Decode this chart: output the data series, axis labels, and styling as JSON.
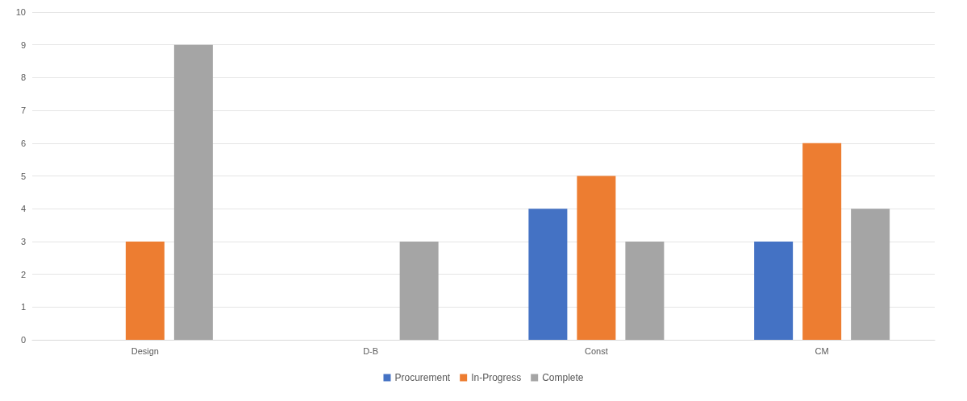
{
  "chart_data": {
    "type": "bar",
    "categories": [
      "Design",
      "D-B",
      "Const",
      "CM"
    ],
    "series": [
      {
        "name": "Procurement",
        "color": "#4472c4",
        "values": [
          0,
          0,
          4,
          3
        ]
      },
      {
        "name": "In-Progress",
        "color": "#ed7d31",
        "values": [
          3,
          0,
          5,
          6
        ]
      },
      {
        "name": "Complete",
        "color": "#a5a5a5",
        "values": [
          9,
          3,
          3,
          4
        ]
      }
    ],
    "ylim": [
      0,
      10
    ],
    "yticks": [
      0,
      1,
      2,
      3,
      4,
      5,
      6,
      7,
      8,
      9,
      10
    ],
    "grid": "y",
    "legend": "bottom"
  }
}
